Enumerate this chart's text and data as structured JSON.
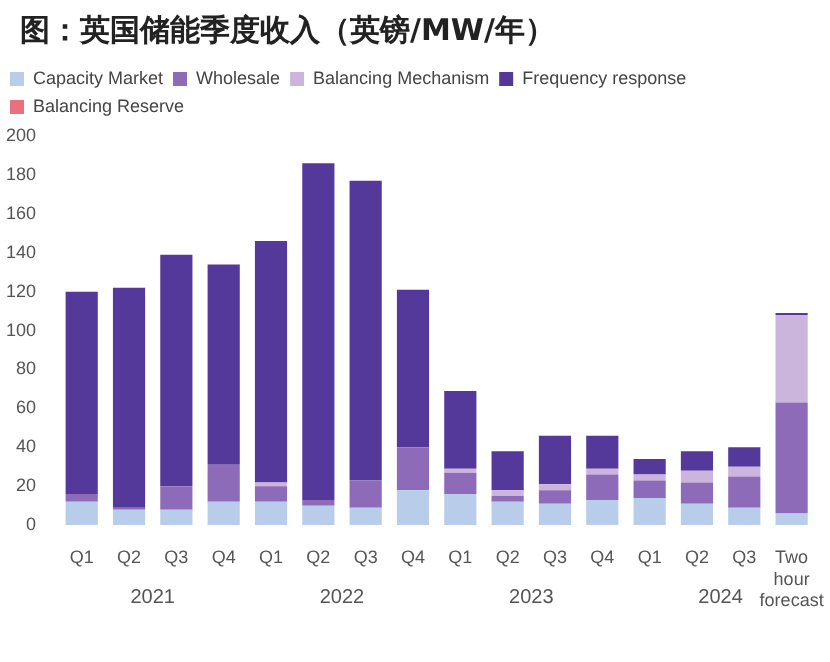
{
  "chart_data": {
    "type": "bar",
    "title": "图：英国储能季度收入（英镑/MW/年）",
    "stacked": true,
    "categories": [
      "Q1",
      "Q2",
      "Q3",
      "Q4",
      "Q1",
      "Q2",
      "Q3",
      "Q4",
      "Q1",
      "Q2",
      "Q3",
      "Q4",
      "Q1",
      "Q2",
      "Q3",
      "Two hour forecast"
    ],
    "series": [
      {
        "name": "Capacity Market",
        "color": "#b8cde9",
        "values": [
          12,
          8,
          8,
          12,
          12,
          10,
          9,
          18,
          16,
          12,
          11,
          13,
          14,
          11,
          9,
          6
        ]
      },
      {
        "name": "Wholesale",
        "color": "#8e6bb8",
        "values": [
          4,
          1,
          12,
          19,
          8,
          3,
          14,
          22,
          11,
          3,
          7,
          13,
          9,
          11,
          16,
          57
        ]
      },
      {
        "name": "Balancing Mechanism",
        "color": "#cbb5dc",
        "values": [
          0,
          0,
          0,
          0,
          2,
          0,
          0,
          0,
          2,
          3,
          3,
          3,
          3,
          6,
          5,
          45
        ]
      },
      {
        "name": "Frequency response",
        "color": "#55399a",
        "values": [
          104,
          113,
          119,
          103,
          124,
          173,
          154,
          81,
          40,
          20,
          25,
          17,
          8,
          10,
          10,
          1
        ]
      },
      {
        "name": "Balancing Reserve",
        "color": "#e8707f",
        "values": [
          0,
          0,
          0,
          0,
          0,
          0,
          0,
          0,
          0,
          0,
          0,
          0,
          0,
          0,
          0,
          0
        ]
      }
    ],
    "ylim": [
      0,
      200
    ],
    "yticks": [
      0,
      20,
      40,
      60,
      80,
      100,
      120,
      140,
      160,
      180,
      200
    ],
    "grid": false,
    "legend": "top left",
    "annotations": [
      "2021",
      "2022",
      "2023",
      "2024"
    ]
  }
}
